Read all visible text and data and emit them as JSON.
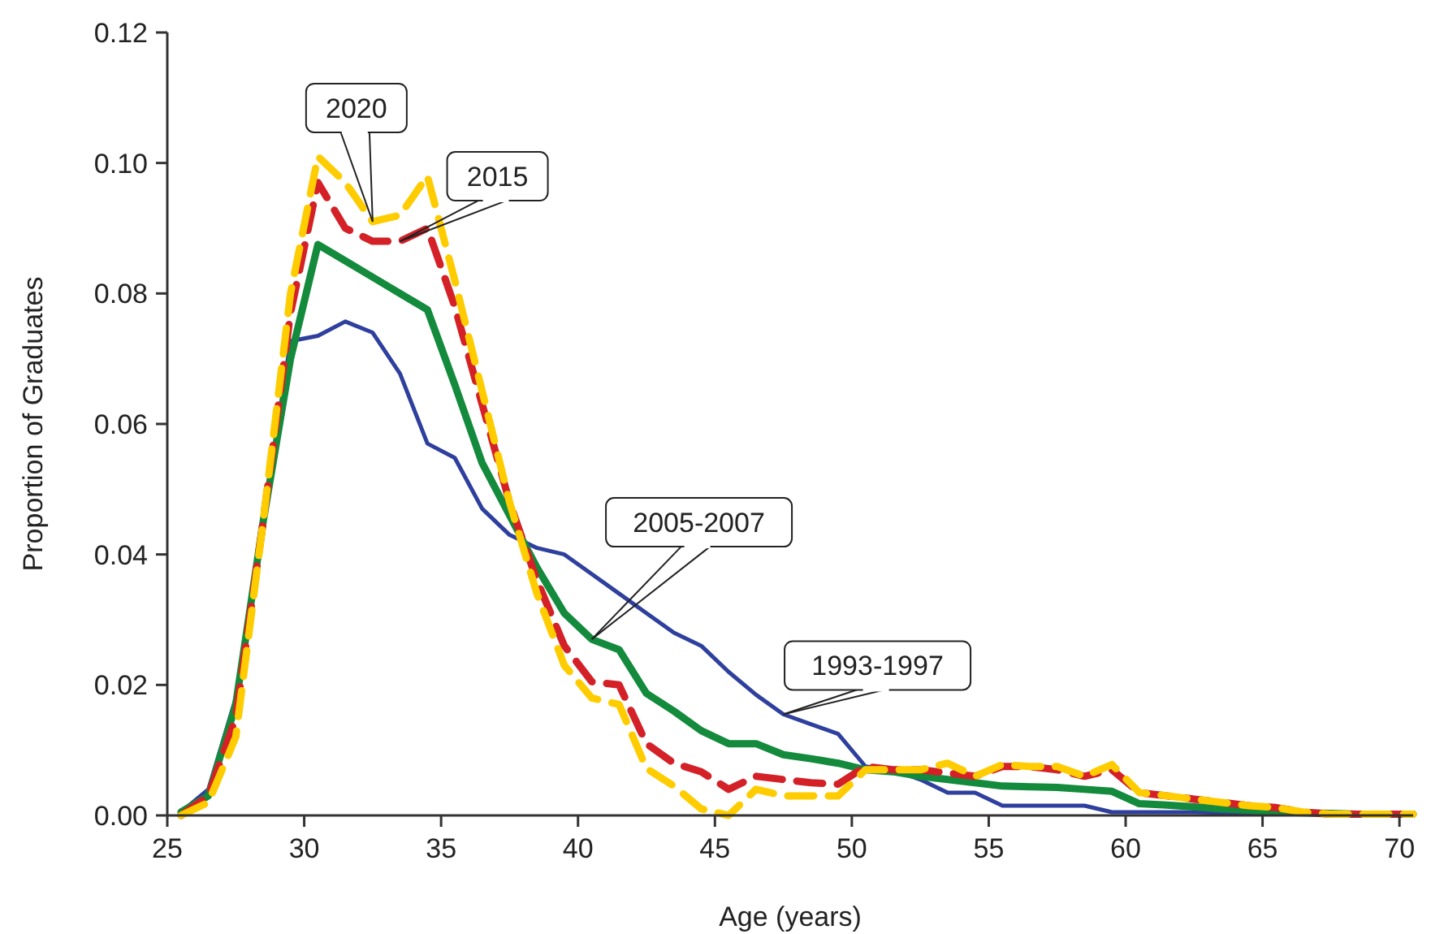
{
  "chart_data": {
    "type": "line",
    "xlabel": "Age (years)",
    "ylabel": "Proportion of Graduates",
    "xlim": [
      25,
      70.5
    ],
    "xticks": [
      25,
      30,
      35,
      40,
      45,
      50,
      55,
      60,
      65,
      70
    ],
    "ylim": [
      0,
      0.12
    ],
    "yticks": [
      {
        "value": 0,
        "label": "0.00"
      },
      {
        "value": 0.02,
        "label": "0.02"
      },
      {
        "value": 0.04,
        "label": "0.04"
      },
      {
        "value": 0.06,
        "label": "0.06"
      },
      {
        "value": 0.08,
        "label": "0.08"
      },
      {
        "value": 0.1,
        "label": "0.10"
      },
      {
        "value": 0.12,
        "label": "0.12"
      }
    ],
    "grid": false,
    "marker": "none",
    "x": [
      25.5,
      26.5,
      27.5,
      28.5,
      29.5,
      30.5,
      31.5,
      32.5,
      33.5,
      34.5,
      35.5,
      36.5,
      37.5,
      38.5,
      39.5,
      40.5,
      41.5,
      42.5,
      43.5,
      44.5,
      45.5,
      46.5,
      47.5,
      48.5,
      49.5,
      50.5,
      51.5,
      52.5,
      53.5,
      54.5,
      55.5,
      56.5,
      57.5,
      58.5,
      59.5,
      60.5,
      61.5,
      62.5,
      63.5,
      64.5,
      65.5,
      66.5,
      67.5,
      68.5,
      69.5,
      70.5
    ],
    "series": [
      {
        "color": "#2e3f9e",
        "line_style": "solid",
        "values": [
          0.0005,
          0.004,
          0.018,
          0.045,
          0.0727,
          0.0735,
          0.0757,
          0.074,
          0.0677,
          0.057,
          0.0548,
          0.047,
          0.043,
          0.041,
          0.04,
          0.037,
          0.034,
          0.031,
          0.028,
          0.026,
          0.022,
          0.0185,
          0.0155,
          0.014,
          0.0125,
          0.0075,
          0.007,
          0.0055,
          0.0035,
          0.0035,
          0.0015,
          0.0015,
          0.0015,
          0.0015,
          0.0005,
          0.0005,
          0.0005,
          0.0005,
          0.0004,
          0.0003,
          0.0002,
          null,
          null,
          null,
          null,
          null
        ]
      },
      {
        "color": "#138a3c",
        "line_style": "solid",
        "values": [
          0.0005,
          0.003,
          0.017,
          0.045,
          0.07,
          0.0875,
          0.085,
          0.0825,
          0.08,
          0.0775,
          0.066,
          0.054,
          0.046,
          0.038,
          0.031,
          0.027,
          0.0254,
          0.0187,
          0.016,
          0.013,
          0.011,
          0.011,
          0.0093,
          0.0087,
          0.008,
          0.007,
          0.0067,
          0.006,
          0.0055,
          0.005,
          0.0045,
          0.0044,
          0.0043,
          0.004,
          0.0037,
          0.0018,
          0.0016,
          0.0013,
          0.001,
          0.0008,
          0.0005,
          0.0004,
          0.0003,
          0.0002,
          0.0002,
          0.0002
        ]
      },
      {
        "color": "#d42027",
        "line_style": "dashed",
        "values": [
          0,
          0.003,
          0.015,
          0.045,
          0.077,
          0.097,
          0.09,
          0.088,
          0.088,
          0.09,
          0.078,
          0.063,
          0.048,
          0.036,
          0.026,
          0.0205,
          0.02,
          0.011,
          0.008,
          0.0067,
          0.004,
          0.006,
          0.0055,
          0.005,
          0.0048,
          0.0075,
          0.007,
          0.007,
          0.0065,
          0.006,
          0.0075,
          0.0075,
          0.007,
          0.006,
          0.007,
          0.0035,
          0.003,
          0.0025,
          0.002,
          0.0015,
          0.0012,
          0.0005,
          0.0002,
          0.0002,
          0.0002,
          0.0002
        ]
      },
      {
        "color": "#ffcc00",
        "line_style": "dashed",
        "values": [
          0,
          0.002,
          0.012,
          0.045,
          0.08,
          0.101,
          0.097,
          0.091,
          0.092,
          0.098,
          0.082,
          0.065,
          0.048,
          0.034,
          0.023,
          0.018,
          0.017,
          0.0072,
          0.0045,
          0.001,
          0,
          0.004,
          0.003,
          0.003,
          0.003,
          0.007,
          0.007,
          0.007,
          0.008,
          0.006,
          0.0078,
          0.0075,
          0.0075,
          0.006,
          0.0078,
          0.0035,
          0.003,
          0.0025,
          0.002,
          0.0015,
          0.0012,
          0.0005,
          0.0002,
          0.0002,
          0.0002,
          0.0002
        ]
      }
    ],
    "annotations": [
      {
        "text": "2020",
        "x": 32.5,
        "y": 0.091
      },
      {
        "text": "2015",
        "x": 33.5,
        "y": 0.088
      },
      {
        "text": "2005-2007",
        "x": 40.5,
        "y": 0.027
      },
      {
        "text": "1993-1997",
        "x": 47.5,
        "y": 0.0155
      }
    ]
  }
}
